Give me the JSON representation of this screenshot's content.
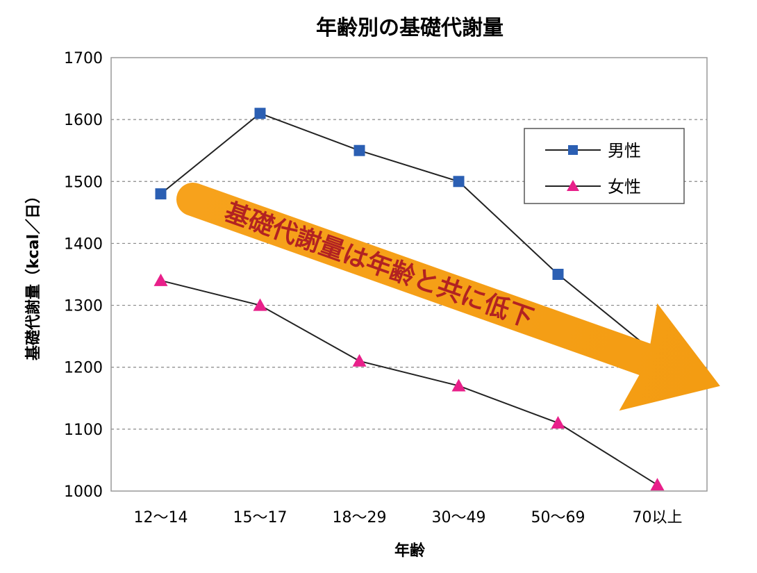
{
  "chart_data": {
    "type": "line",
    "title": "年齢別の基礎代謝量",
    "xlabel": "年齢",
    "ylabel": "基礎代謝量（kcal／日）",
    "categories": [
      "12～14",
      "15～17",
      "18～29",
      "30～49",
      "50～69",
      "70以上"
    ],
    "ylim": [
      1000,
      1700
    ],
    "yticks": [
      "1000",
      "1100",
      "1200",
      "1300",
      "1400",
      "1500",
      "1600",
      "1700"
    ],
    "grid": true,
    "legend_position": "top-right",
    "series": [
      {
        "name": "男性",
        "values": [
          1480,
          1610,
          1550,
          1500,
          1350,
          1220
        ],
        "color": "#2b5fb3",
        "marker": "square"
      },
      {
        "name": "女性",
        "values": [
          1340,
          1300,
          1210,
          1170,
          1110,
          1010
        ],
        "color": "#e8208a",
        "marker": "triangle"
      }
    ],
    "annotation": {
      "text": "基礎代謝量は年齢と共に低下",
      "arrow_color": "#f39c12",
      "text_color": "#b22222"
    }
  }
}
